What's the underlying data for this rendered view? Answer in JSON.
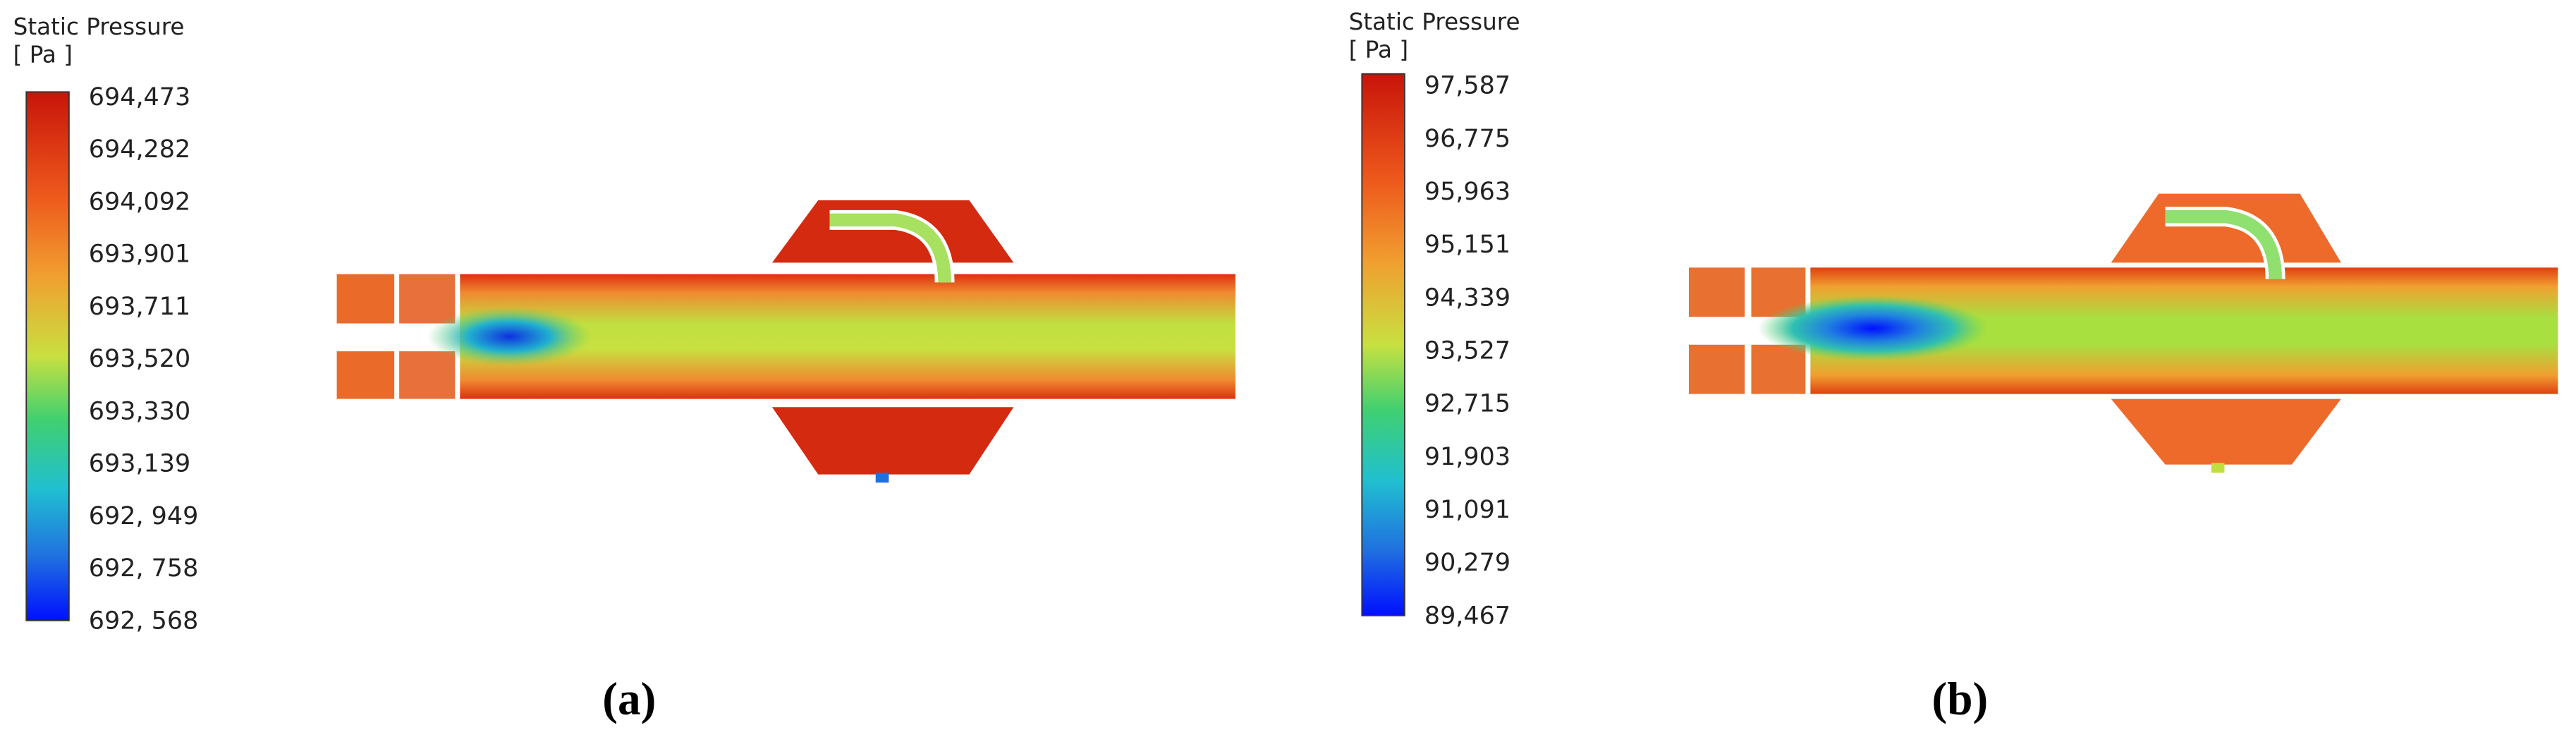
{
  "panels": [
    {
      "legend": {
        "title": "Static Pressure",
        "unit": "[ Pa ]",
        "labels": [
          "694,473",
          "694,282",
          "694,092",
          "693,901",
          "693,711",
          "693,520",
          "693,330",
          "693,139",
          "692, 949",
          "692, 758",
          "692, 568"
        ]
      },
      "label": "(a)"
    },
    {
      "legend": {
        "title": "Static Pressure",
        "unit": "[ Pa ]",
        "labels": [
          "97,587",
          "96,775",
          "95,963",
          "95,151",
          "94,339",
          "93,527",
          "92,715",
          "91,903",
          "91,091",
          "90,279",
          "89,467"
        ]
      },
      "label": "(b)"
    }
  ]
}
